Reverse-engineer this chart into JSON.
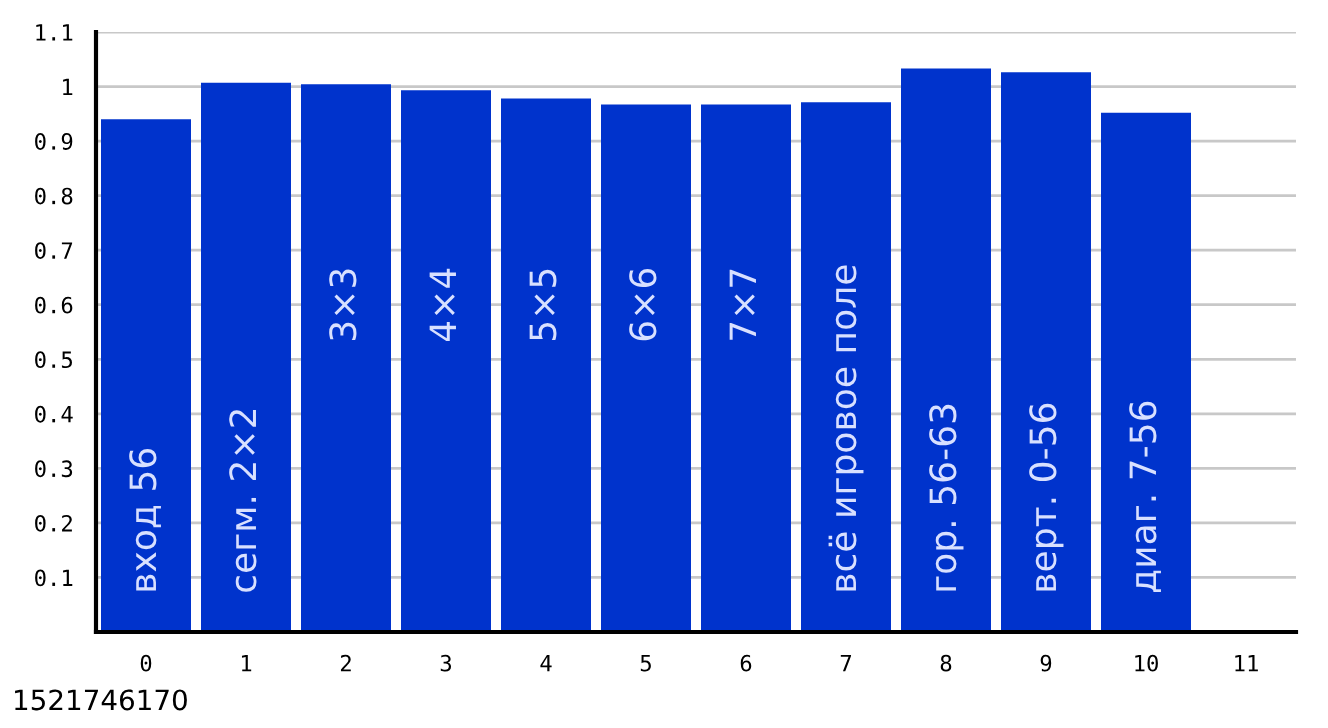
{
  "chart_data": {
    "type": "bar",
    "x": [
      0,
      1,
      2,
      3,
      4,
      5,
      6,
      7,
      8,
      9,
      10
    ],
    "values": [
      0.94,
      1.007,
      1.004,
      0.993,
      0.978,
      0.967,
      0.967,
      0.971,
      1.033,
      1.026,
      0.952
    ],
    "color": "#0033cc",
    "xlim": [
      -0.5,
      11.5
    ],
    "xticks": [
      0,
      1,
      2,
      3,
      4,
      5,
      6,
      7,
      8,
      9,
      10,
      11
    ],
    "ylim": [
      0,
      1.1
    ],
    "yticks": [
      0.1,
      0.2,
      0.3,
      0.4,
      0.5,
      0.6,
      0.7,
      0.8,
      0.9,
      1,
      1.1
    ],
    "grid": "y",
    "annotations": [
      "вход 56",
      "сегм. 2×2",
      "3×3",
      "4×4",
      "5×5",
      "6×6",
      "7×7",
      "всё игровое поле",
      "гор. 56-63",
      "верт. 0-56",
      "диаг. 7-56",
      "1521746170"
    ]
  }
}
